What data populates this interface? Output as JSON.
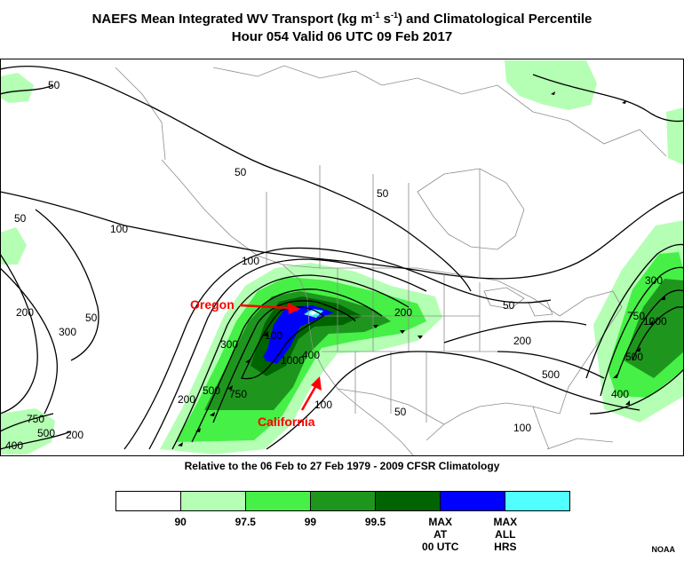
{
  "title": {
    "line1_pre": "NAEFS Mean Integrated WV Transport (kg m",
    "exp1": "-1",
    "line1_mid": " s",
    "exp2": "-1",
    "line1_post": ") and Climatological Percentile",
    "line2": "Hour 054 Valid 06 UTC 09 Feb 2017"
  },
  "subtitle": "Relative to the 06 Feb to 27 Feb 1979 - 2009 CFSR Climatology",
  "annotations": {
    "oregon": "Oregon",
    "california": "California"
  },
  "contour_labels": [
    "50",
    "50",
    "50",
    "50",
    "100",
    "100",
    "200",
    "300",
    "50",
    "100",
    "300",
    "500",
    "750",
    "1000",
    "200",
    "300",
    "400",
    "500",
    "750",
    "1000",
    "500",
    "400",
    "100",
    "50",
    "200",
    "50",
    "100",
    "750",
    "400",
    "500",
    "200",
    "200"
  ],
  "legend": {
    "colors": [
      "#ffffff",
      "#b4ffb4",
      "#46f046",
      "#1e961e",
      "#006400",
      "#0000ff",
      "#50ffff"
    ],
    "labels": [
      "90",
      "97.5",
      "99",
      "99.5",
      "MAX\nAT\n00 UTC",
      "MAX\nALL\nHRS"
    ]
  },
  "credit": "NOAA"
}
